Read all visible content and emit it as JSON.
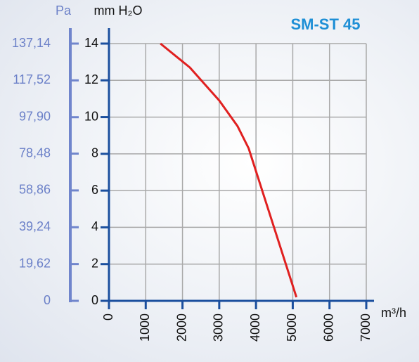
{
  "chart_data": {
    "type": "line",
    "title": "SM-ST 45",
    "y_label": "mm H₂O",
    "y2_label": "Pa",
    "x_label": "m³/h",
    "x": [
      1400,
      2200,
      3000,
      3500,
      3800,
      5100
    ],
    "series": [
      {
        "name": "SM-ST 45",
        "color": "#e02020",
        "values": [
          14,
          12.7,
          10.9,
          9.5,
          8.3,
          0.2
        ]
      }
    ],
    "xlim": [
      0,
      7000
    ],
    "xticks": [
      0,
      1000,
      2000,
      3000,
      4000,
      5000,
      6000,
      7000
    ],
    "ylim": [
      0,
      14
    ],
    "yticks": [
      0,
      2,
      4,
      6,
      8,
      10,
      12,
      14
    ],
    "y2lim": [
      0,
      137.14
    ],
    "y2ticks": [
      0,
      {
        "value": 19.62,
        "label": "19,62"
      },
      {
        "value": 39.24,
        "label": "39,24"
      },
      {
        "value": 58.86,
        "label": "58,86"
      },
      {
        "value": 78.48,
        "label": "78,48"
      },
      {
        "value": 97.9,
        "label": "97,90"
      },
      {
        "value": 117.52,
        "label": "117,52"
      },
      {
        "value": 137.14,
        "label": "137,14"
      }
    ],
    "grid": true
  }
}
